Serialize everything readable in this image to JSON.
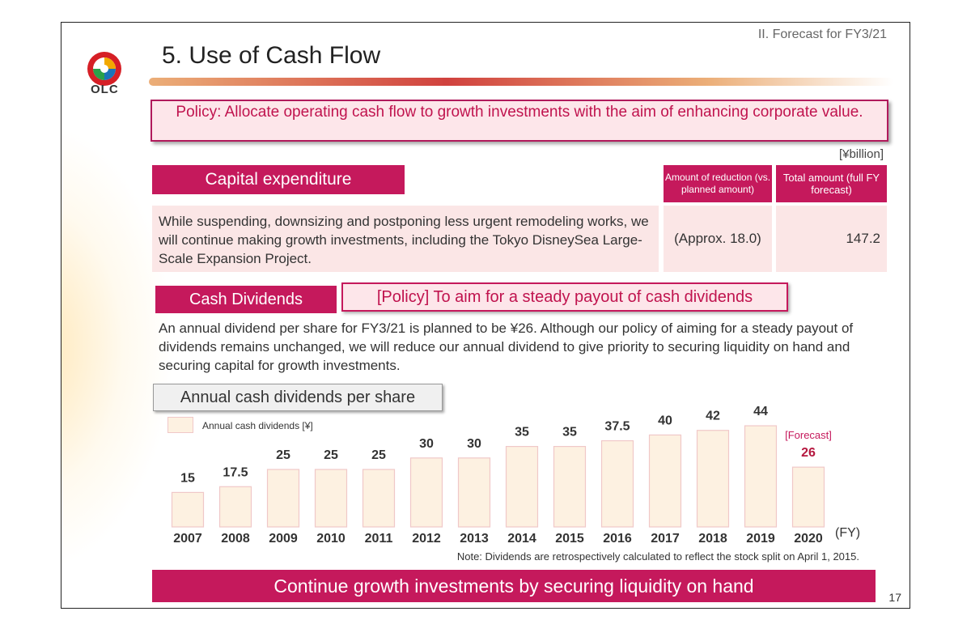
{
  "header": {
    "section_label": "II. Forecast for FY3/21",
    "logo_text": "OLC",
    "title": "5. Use of Cash Flow"
  },
  "policy": "Policy: Allocate operating cash flow to growth investments with the aim of enhancing corporate value.",
  "unit": "[¥billion]",
  "capex": {
    "title": "Capital expenditure",
    "col_reduction": "Amount of reduction (vs. planned amount)",
    "col_total": "Total amount (full FY forecast)",
    "description": "While suspending, downsizing and postponing less urgent remodeling works, we will continue making growth investments, including the Tokyo DisneySea Large-Scale Expansion Project.",
    "reduction_value": "(Approx. 18.0)",
    "total_value": "147.2"
  },
  "dividends": {
    "title": "Cash Dividends",
    "policy": "[Policy] To aim for a steady payout of cash dividends",
    "text": "An annual dividend per share for FY3/21 is planned to be ¥26. Although our policy of aiming for a steady payout of dividends remains unchanged, we will reduce our annual dividend to give priority to securing liquidity on hand and securing capital for growth investments."
  },
  "chart_title": "Annual cash dividends per share",
  "chart_data": {
    "type": "bar",
    "legend": "Annual cash dividends [¥]",
    "categories": [
      "2007",
      "2008",
      "2009",
      "2010",
      "2011",
      "2012",
      "2013",
      "2014",
      "2015",
      "2016",
      "2017",
      "2018",
      "2019",
      "2020"
    ],
    "values": [
      15,
      17.5,
      25,
      25,
      25,
      30,
      30,
      35,
      35,
      37.5,
      40,
      42,
      44,
      26
    ],
    "value_labels": [
      "15",
      "17.5",
      "25",
      "25",
      "25",
      "30",
      "30",
      "35",
      "35",
      "37.5",
      "40",
      "42",
      "44",
      "26"
    ],
    "forecast_label": "[Forecast]",
    "forecast_index": 13,
    "xlabel": "(FY)",
    "ylim": [
      0,
      44
    ],
    "bar_color": "#fdf1e1",
    "bar_border": "#f0c8c8",
    "forecast_color": "#b5173f"
  },
  "note": "Note: Dividends are retrospectively calculated to reflect the stock split on April 1, 2015.",
  "banner": "Continue growth investments by securing liquidity on hand",
  "page_number": "17"
}
